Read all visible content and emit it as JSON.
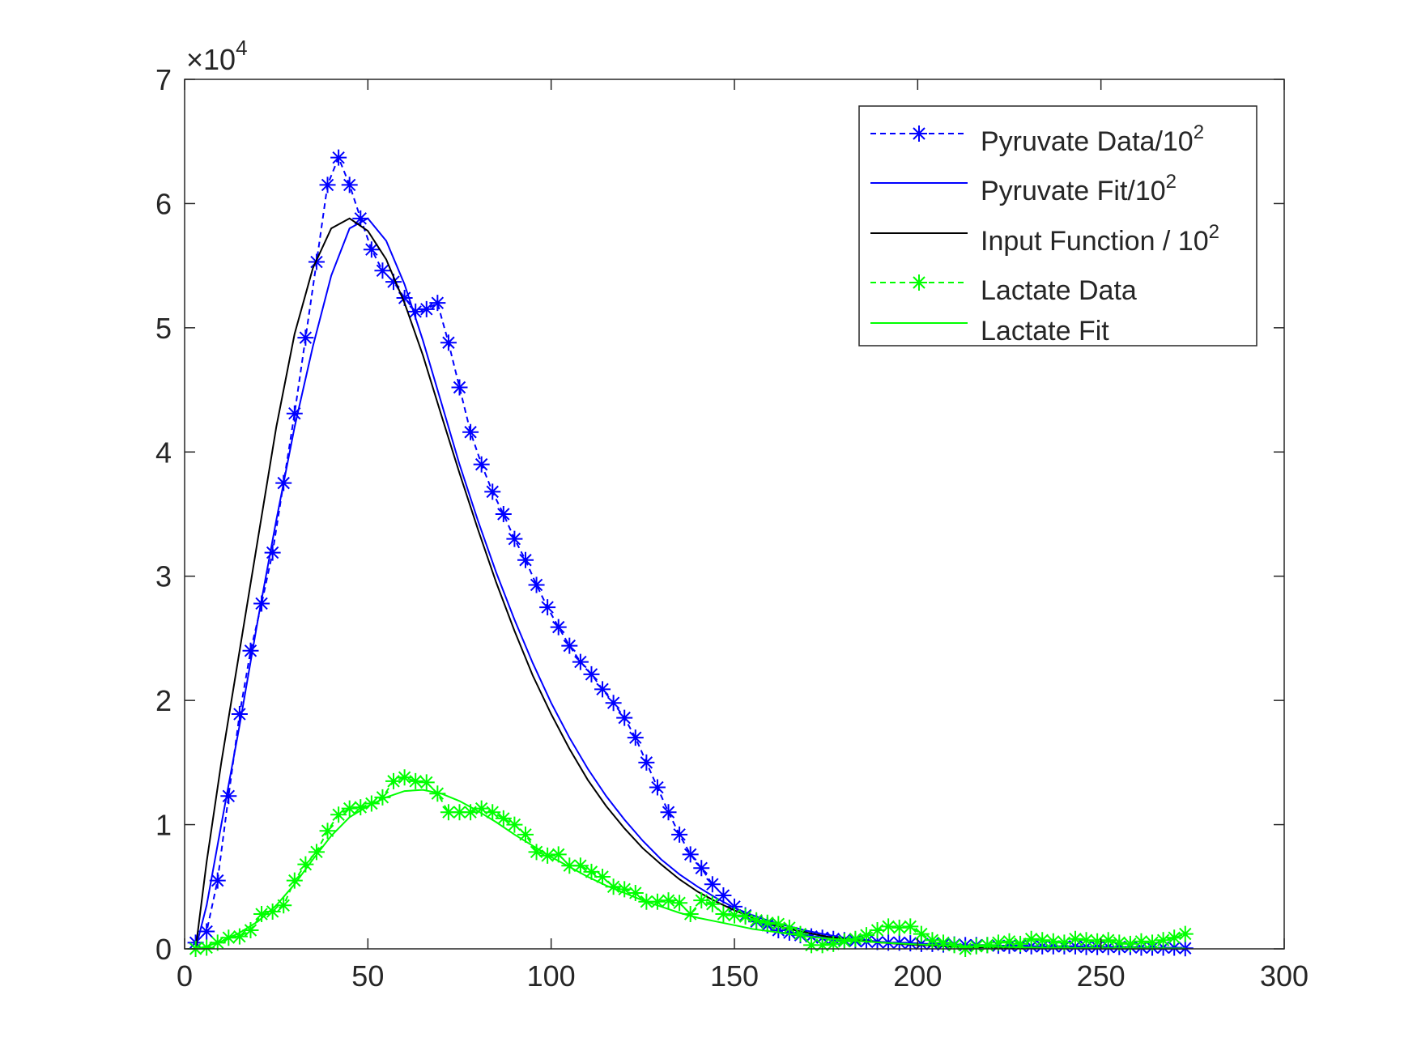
{
  "chart_data": {
    "type": "line",
    "title": "",
    "xlabel": "",
    "ylabel": "",
    "xlim": [
      0,
      300
    ],
    "ylim": [
      0,
      70000
    ],
    "y_exponent_label": "×10",
    "y_exponent_power": "4",
    "xticks": [
      0,
      50,
      100,
      150,
      200,
      250,
      300
    ],
    "yticks": [
      0,
      1,
      2,
      3,
      4,
      5,
      6,
      7
    ],
    "grid": false,
    "legend_position": "top-right",
    "series": [
      {
        "name": "Pyruvate Data/10",
        "name_sup": "2",
        "color": "#0000ff",
        "style": "dashed",
        "marker": "asterisk",
        "x": [
          3,
          6,
          9,
          12,
          15,
          18,
          21,
          24,
          27,
          30,
          33,
          36,
          39,
          42,
          45,
          48,
          51,
          54,
          57,
          60,
          63,
          66,
          69,
          72,
          75,
          78,
          81,
          84,
          87,
          90,
          93,
          96,
          99,
          102,
          105,
          108,
          111,
          114,
          117,
          120,
          123,
          126,
          129,
          132,
          135,
          138,
          141,
          144,
          147,
          150,
          153,
          156,
          159,
          162,
          165,
          168,
          171,
          174,
          177,
          180,
          183,
          186,
          189,
          192,
          195,
          198,
          201,
          204,
          207,
          210,
          213,
          216,
          219,
          222,
          225,
          228,
          231,
          234,
          237,
          240,
          243,
          246,
          249,
          252,
          255,
          258,
          261,
          264,
          267,
          270,
          273
        ],
        "y": [
          500,
          1400,
          5500,
          12300,
          18900,
          24000,
          27800,
          31900,
          37500,
          43100,
          49200,
          55300,
          61500,
          63700,
          61500,
          58800,
          56300,
          54600,
          53700,
          52400,
          51300,
          51500,
          52000,
          48800,
          45200,
          41600,
          39000,
          36800,
          35000,
          33000,
          31300,
          29300,
          27500,
          25900,
          24400,
          23100,
          22100,
          20900,
          19800,
          18600,
          17000,
          15000,
          13000,
          11000,
          9200,
          7600,
          6500,
          5200,
          4300,
          3400,
          2700,
          2200,
          1900,
          1500,
          1300,
          1100,
          1000,
          900,
          800,
          700,
          650,
          600,
          550,
          500,
          500,
          450,
          400,
          400,
          350,
          350,
          300,
          300,
          300,
          250,
          250,
          250,
          200,
          200,
          200,
          200,
          200,
          150,
          150,
          150,
          150,
          150,
          100,
          100,
          100,
          100,
          50
        ]
      },
      {
        "name": "Pyruvate Fit/10",
        "name_sup": "2",
        "color": "#0000ff",
        "style": "solid",
        "marker": "none",
        "x": [
          3,
          6,
          10,
          15,
          20,
          25,
          30,
          35,
          40,
          45,
          50,
          55,
          60,
          65,
          70,
          75,
          80,
          85,
          90,
          95,
          100,
          105,
          110,
          115,
          120,
          125,
          130,
          135,
          140,
          145,
          150,
          155,
          160,
          165,
          170,
          175,
          180,
          185,
          190,
          195,
          200,
          210,
          220,
          230,
          240,
          250,
          260,
          273
        ],
        "y": [
          0,
          3500,
          10000,
          18000,
          26500,
          34500,
          42000,
          48500,
          54200,
          58000,
          58800,
          57000,
          53500,
          49000,
          44000,
          39000,
          34500,
          30300,
          26500,
          23000,
          19800,
          17000,
          14500,
          12300,
          10400,
          8700,
          7200,
          6000,
          5000,
          4100,
          3300,
          2700,
          2200,
          1800,
          1450,
          1150,
          900,
          720,
          560,
          440,
          340,
          200,
          120,
          70,
          40,
          25,
          15,
          5
        ]
      },
      {
        "name": "Input Function / 10",
        "name_sup": "2",
        "color": "#000000",
        "style": "solid",
        "marker": "none",
        "x": [
          3,
          6,
          10,
          15,
          20,
          25,
          30,
          35,
          40,
          45,
          50,
          55,
          60,
          65,
          70,
          75,
          80,
          85,
          90,
          95,
          100,
          105,
          110,
          115,
          120,
          125,
          130,
          135,
          140,
          145,
          150,
          155,
          160,
          165,
          170,
          175,
          180,
          185,
          190,
          195,
          200,
          210,
          220,
          230,
          240,
          250,
          260,
          273
        ],
        "y": [
          0,
          7000,
          15000,
          24000,
          33000,
          42000,
          49500,
          54800,
          58000,
          58800,
          57800,
          55500,
          52000,
          47800,
          43000,
          38300,
          33800,
          29500,
          25600,
          22000,
          18900,
          16100,
          13600,
          11500,
          9700,
          8100,
          6800,
          5600,
          4600,
          3800,
          3100,
          2500,
          2000,
          1600,
          1300,
          1000,
          800,
          640,
          500,
          400,
          310,
          180,
          100,
          60,
          35,
          20,
          12,
          5
        ]
      },
      {
        "name": "Lactate Data",
        "name_sup": "",
        "color": "#00ff00",
        "style": "dashed",
        "marker": "asterisk",
        "x": [
          3,
          6,
          9,
          12,
          15,
          18,
          21,
          24,
          27,
          30,
          33,
          36,
          39,
          42,
          45,
          48,
          51,
          54,
          57,
          60,
          63,
          66,
          69,
          72,
          75,
          78,
          81,
          84,
          87,
          90,
          93,
          96,
          99,
          102,
          105,
          108,
          111,
          114,
          117,
          120,
          123,
          126,
          129,
          132,
          135,
          138,
          141,
          144,
          147,
          150,
          153,
          156,
          159,
          162,
          165,
          168,
          171,
          174,
          177,
          180,
          183,
          186,
          189,
          192,
          195,
          198,
          201,
          204,
          207,
          210,
          213,
          216,
          219,
          222,
          225,
          228,
          231,
          234,
          237,
          240,
          243,
          246,
          249,
          252,
          255,
          258,
          261,
          264,
          267,
          270,
          273
        ],
        "y": [
          0,
          100,
          500,
          900,
          1000,
          1500,
          2800,
          3000,
          3500,
          5500,
          6800,
          7800,
          9500,
          10800,
          11300,
          11400,
          11700,
          12200,
          13500,
          13800,
          13500,
          13400,
          12500,
          11000,
          11000,
          11000,
          11300,
          11000,
          10500,
          10000,
          9200,
          7800,
          7500,
          7600,
          6700,
          6700,
          6200,
          5800,
          5000,
          4800,
          4500,
          3800,
          3800,
          3900,
          3700,
          2800,
          3900,
          3600,
          2800,
          2700,
          2600,
          2300,
          2100,
          2000,
          1700,
          1200,
          300,
          300,
          400,
          600,
          800,
          1100,
          1500,
          1800,
          1700,
          1800,
          1200,
          700,
          500,
          300,
          0,
          200,
          300,
          500,
          600,
          400,
          800,
          700,
          600,
          500,
          800,
          700,
          600,
          700,
          500,
          400,
          600,
          500,
          700,
          900,
          1200
        ]
      },
      {
        "name": "Lactate Fit",
        "name_sup": "",
        "color": "#00ff00",
        "style": "solid",
        "marker": "none",
        "x": [
          3,
          6,
          10,
          15,
          20,
          25,
          30,
          35,
          40,
          45,
          50,
          55,
          60,
          65,
          70,
          75,
          80,
          85,
          90,
          95,
          100,
          105,
          110,
          115,
          120,
          125,
          130,
          135,
          140,
          145,
          150,
          155,
          160,
          165,
          170,
          175,
          180,
          185,
          190,
          195,
          200,
          210,
          220,
          230,
          240,
          250,
          260,
          273
        ],
        "y": [
          0,
          200,
          600,
          1300,
          2200,
          3500,
          5200,
          7200,
          9100,
          10600,
          11500,
          12200,
          12700,
          12800,
          12500,
          11900,
          11100,
          10200,
          9200,
          8300,
          7400,
          6600,
          5800,
          5100,
          4500,
          3900,
          3400,
          2900,
          2500,
          2200,
          1900,
          1600,
          1400,
          1200,
          1000,
          850,
          720,
          600,
          510,
          430,
          360,
          250,
          170,
          120,
          90,
          60,
          45,
          30
        ]
      }
    ]
  }
}
